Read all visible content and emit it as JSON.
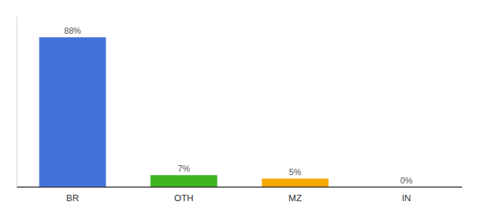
{
  "chart_data": {
    "type": "bar",
    "categories": [
      "BR",
      "OTH",
      "MZ",
      "IN"
    ],
    "values": [
      88,
      7,
      5,
      0
    ],
    "value_labels": [
      "88%",
      "7%",
      "5%",
      "0%"
    ],
    "colors": [
      "#4472DB",
      "#3cb521",
      "#f5a800",
      "#f5a800"
    ],
    "ylim": [
      0,
      100
    ],
    "data_labels": true,
    "tick_labels": "x",
    "grid": false
  }
}
